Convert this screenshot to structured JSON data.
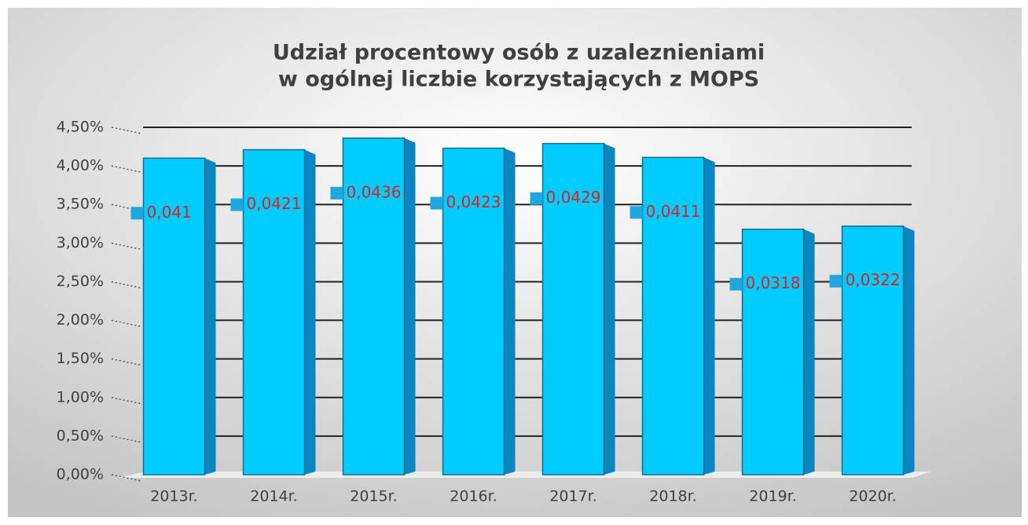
{
  "chart_data": {
    "type": "bar",
    "title": [
      "Udział procentowy osób z uzaleznieniami",
      "w ogólnej liczbie korzystających z MOPS"
    ],
    "categories": [
      "2013r.",
      "2014r.",
      "2015r.",
      "2016r.",
      "2017r.",
      "2018r.",
      "2019r.",
      "2020r."
    ],
    "values": [
      4.1,
      4.21,
      4.36,
      4.23,
      4.29,
      4.11,
      3.18,
      3.22
    ],
    "value_labels": [
      "0,041",
      "0,0421",
      "0,0436",
      "0,0423",
      "0,0429",
      "0,0411",
      "0,0318",
      "0,0322"
    ],
    "color": "#00ccff",
    "ylim": [
      0,
      4.5
    ],
    "yticks": [
      {
        "value": 0,
        "label": "0,00%"
      },
      {
        "value": 0.5,
        "label": "0,50%"
      },
      {
        "value": 1,
        "label": "1,00%"
      },
      {
        "value": 1.5,
        "label": "1,50%"
      },
      {
        "value": 2,
        "label": "2,00%"
      },
      {
        "value": 2.5,
        "label": "2,50%"
      },
      {
        "value": 3,
        "label": "3,00%"
      },
      {
        "value": 3.5,
        "label": "3,50%"
      },
      {
        "value": 4,
        "label": "4,00%"
      },
      {
        "value": 4.5,
        "label": "4,50%"
      }
    ],
    "grid": true
  }
}
